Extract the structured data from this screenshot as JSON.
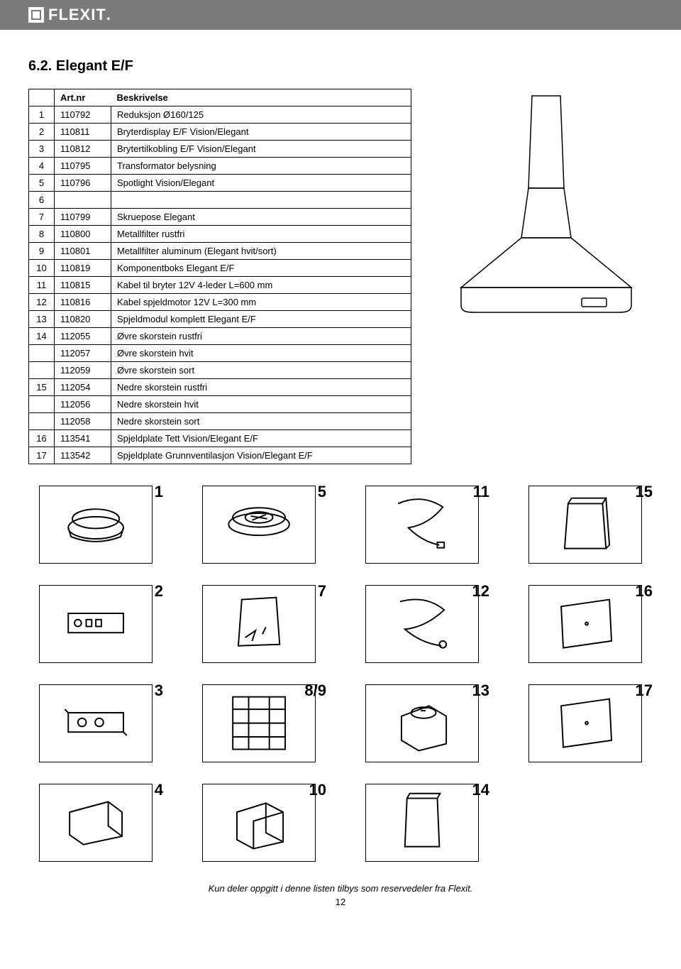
{
  "brand": "FLEXIT",
  "section_title": "6.2.  Elegant E/F",
  "table": {
    "type": "table",
    "columns": [
      "",
      "Art.nr",
      "Beskrivelse"
    ],
    "rows": [
      [
        "1",
        "110792",
        "Reduksjon Ø160/125"
      ],
      [
        "2",
        "110811",
        "Bryterdisplay E/F Vision/Elegant"
      ],
      [
        "3",
        "110812",
        "Brytertilkobling E/F Vision/Elegant"
      ],
      [
        "4",
        "110795",
        "Transformator belysning"
      ],
      [
        "5",
        "110796",
        "Spotlight Vision/Elegant"
      ],
      [
        "6",
        "",
        ""
      ],
      [
        "7",
        "110799",
        "Skruepose Elegant"
      ],
      [
        "8",
        "110800",
        "Metallfilter rustfri"
      ],
      [
        "9",
        "110801",
        "Metallfilter aluminum (Elegant hvit/sort)"
      ],
      [
        "10",
        "110819",
        "Komponentboks Elegant E/F"
      ],
      [
        "11",
        "110815",
        "Kabel  til bryter 12V 4-leder L=600 mm"
      ],
      [
        "12",
        "110816",
        "Kabel spjeldmotor 12V L=300 mm"
      ],
      [
        "13",
        "110820",
        "Spjeldmodul komplett Elegant E/F"
      ],
      [
        "14",
        "112055",
        "Øvre skorstein rustfri"
      ],
      [
        "",
        "112057",
        "Øvre skorstein hvit"
      ],
      [
        "",
        "112059",
        "Øvre skorstein sort"
      ],
      [
        "15",
        "112054",
        "Nedre skorstein rustfri"
      ],
      [
        "",
        "112056",
        "Nedre skorstein hvit"
      ],
      [
        "",
        "112058",
        "Nedre skorstein sort"
      ],
      [
        "16",
        "113541",
        "Spjeldplate Tett Vision/Elegant E/F"
      ],
      [
        "17",
        "113542",
        "Spjeldplate Grunnventilasjon Vision/Elegant E/F"
      ]
    ]
  },
  "thumbs": [
    {
      "num": "1",
      "shape": "ring"
    },
    {
      "num": "5",
      "shape": "spotlight"
    },
    {
      "num": "11",
      "shape": "cable"
    },
    {
      "num": "15",
      "shape": "chimney-open"
    },
    {
      "num": "2",
      "shape": "panel"
    },
    {
      "num": "7",
      "shape": "bag"
    },
    {
      "num": "12",
      "shape": "cable2"
    },
    {
      "num": "16",
      "shape": "plate"
    },
    {
      "num": "3",
      "shape": "connector"
    },
    {
      "num": "8/9",
      "shape": "filter"
    },
    {
      "num": "13",
      "shape": "module"
    },
    {
      "num": "17",
      "shape": "plate"
    },
    {
      "num": "4",
      "shape": "transformer"
    },
    {
      "num": "10",
      "shape": "box"
    },
    {
      "num": "14",
      "shape": "chimney"
    },
    {
      "num": "",
      "shape": "none"
    }
  ],
  "footer": "Kun deler oppgitt i denne listen tilbys som reservedeler fra Flexit.",
  "page_number": "12",
  "colors": {
    "header_bg": "#7a7a7a",
    "header_fg": "#ffffff",
    "border": "#000000",
    "text": "#000000"
  }
}
